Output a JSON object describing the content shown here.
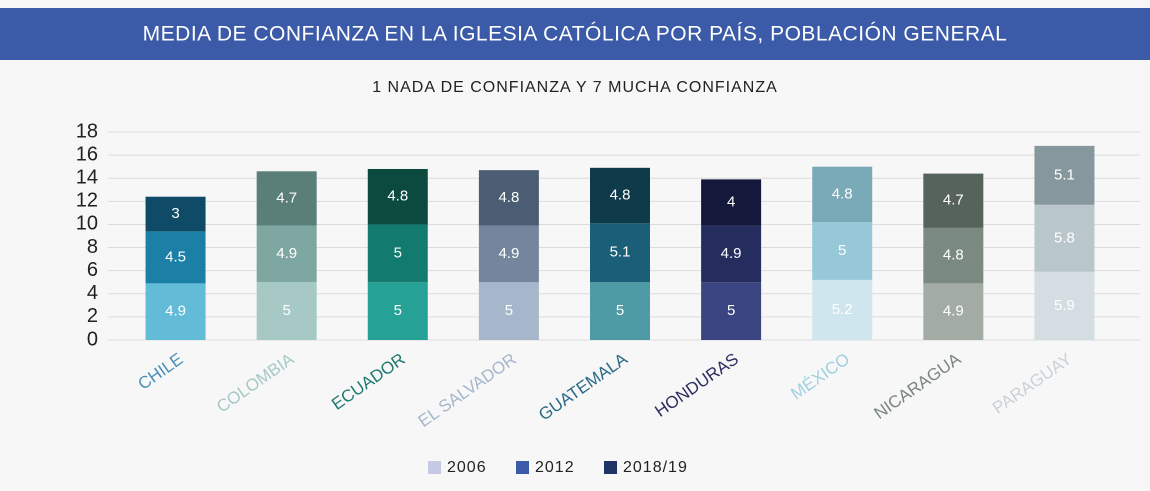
{
  "chart_data": {
    "type": "stacked_bar",
    "title": "MEDIA DE CONFIANZA EN LA IGLESIA CATÓLICA POR PAÍS, POBLACIÓN GENERAL",
    "subtitle": "1 NADA DE CONFIANZA Y 7 MUCHA CONFIANZA",
    "categories": [
      "CHILE",
      "COLOMBIA",
      "ECUADOR",
      "EL SALVADOR",
      "GUATEMALA",
      "HONDURAS",
      "MÉXICO",
      "NICARAGUA",
      "PARAGUAY"
    ],
    "category_colors": [
      "#4a8fb8",
      "#a6c9c5",
      "#1f7a70",
      "#a6b7cc",
      "#2a6a88",
      "#2a2f60",
      "#a0d0e0",
      "#7a8580",
      "#c8d2d8"
    ],
    "series": [
      {
        "name": "2006",
        "color": "#c5c9e3",
        "values": [
          4.9,
          5,
          5,
          5,
          5,
          5,
          5.2,
          4.9,
          5.9
        ],
        "colors": [
          "#62bcd8",
          "#a6c9c5",
          "#26a195",
          "#a6b7cc",
          "#4e9aa5",
          "#3a4480",
          "#cfe6ee",
          "#a3aca4",
          "#d3dde2"
        ]
      },
      {
        "name": "2012",
        "color": "#3b5ba9",
        "values": [
          4.5,
          4.9,
          5,
          4.9,
          5.1,
          4.9,
          5,
          4.8,
          5.8
        ],
        "colors": [
          "#1b7fa6",
          "#7ea7a2",
          "#137a70",
          "#73869e",
          "#1a5e78",
          "#252c5e",
          "#96c8d8",
          "#7b8a80",
          "#b9c6cc"
        ]
      },
      {
        "name": "2018/19",
        "color": "#1f3466",
        "values": [
          3,
          4.7,
          4.8,
          4.8,
          4.8,
          4,
          4.8,
          4.7,
          5.1
        ],
        "colors": [
          "#0f4a66",
          "#5a7e78",
          "#0c4a40",
          "#4a5d72",
          "#0e3a4a",
          "#14183a",
          "#7aa9b8",
          "#55635a",
          "#86979e"
        ]
      }
    ],
    "ylim": [
      0,
      18
    ],
    "yticks": [
      0,
      2,
      4,
      6,
      8,
      10,
      12,
      14,
      16,
      18
    ],
    "grid": true,
    "legend": "bottom"
  }
}
